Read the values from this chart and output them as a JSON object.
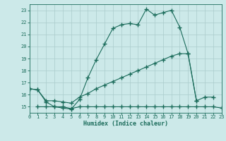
{
  "xlabel": "Humidex (Indice chaleur)",
  "bg_color": "#cce9e9",
  "grid_color": "#aacccc",
  "line_color": "#1a6b5a",
  "xlim": [
    0,
    23
  ],
  "ylim": [
    14.5,
    23.5
  ],
  "yticks": [
    15,
    16,
    17,
    18,
    19,
    20,
    21,
    22,
    23
  ],
  "xticks": [
    0,
    1,
    2,
    3,
    4,
    5,
    6,
    7,
    8,
    9,
    10,
    11,
    12,
    13,
    14,
    15,
    16,
    17,
    18,
    19,
    20,
    21,
    22,
    23
  ],
  "line1_x": [
    0,
    1,
    2,
    3,
    4,
    5,
    6,
    7,
    8,
    9,
    10,
    11,
    12,
    13,
    14,
    15,
    16,
    17,
    18,
    19,
    20,
    21,
    22
  ],
  "line1_y": [
    16.5,
    16.4,
    15.4,
    15.0,
    14.9,
    14.8,
    15.6,
    17.4,
    18.9,
    20.2,
    21.5,
    21.8,
    21.9,
    21.8,
    23.1,
    22.6,
    22.8,
    23.0,
    21.6,
    19.4,
    15.5,
    15.8,
    15.8
  ],
  "line2_x": [
    0,
    1,
    2,
    3,
    4,
    5,
    6,
    7,
    8,
    9,
    10,
    11,
    12,
    13,
    14,
    15,
    16,
    17,
    18,
    19,
    20
  ],
  "line2_y": [
    16.5,
    16.4,
    15.5,
    15.5,
    15.4,
    15.3,
    15.8,
    16.1,
    16.5,
    16.8,
    17.1,
    17.4,
    17.7,
    18.0,
    18.3,
    18.6,
    18.9,
    19.2,
    19.4,
    19.4,
    15.5
  ],
  "line3_x": [
    1,
    2,
    3,
    4,
    5,
    6,
    7,
    8,
    9,
    10,
    11,
    12,
    13,
    14,
    15,
    16,
    17,
    18,
    19,
    20,
    21,
    22,
    23
  ],
  "line3_y": [
    15.0,
    15.0,
    15.0,
    15.0,
    14.85,
    15.0,
    15.0,
    15.0,
    15.0,
    15.0,
    15.0,
    15.0,
    15.0,
    15.0,
    15.0,
    15.0,
    15.0,
    15.0,
    15.0,
    15.0,
    15.0,
    15.0,
    14.9
  ]
}
